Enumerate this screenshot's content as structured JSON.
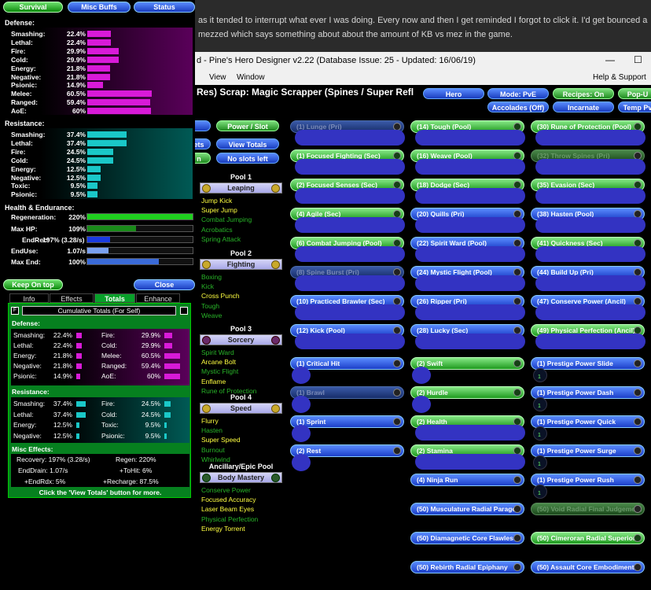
{
  "forum": {
    "line1": "as it tended to interrupt what ever I was doing.  Every now and then I get reminded I forgot to click it.  I'd get bounced a",
    "line2": "mezzed which says something about about the amount of KB vs mez in the game."
  },
  "window": {
    "title": "d - Pine's Hero Designer v2.22 (Database Issue: 25 - Updated: 16/06/19)",
    "min": "—",
    "max": "☐"
  },
  "menu": {
    "view": "View",
    "window": "Window",
    "help": "Help & Support"
  },
  "build_title": "Res) Scrap: Magic Scrapper (Spines / Super Refl",
  "top_buttons": {
    "hero": "Hero",
    "mode": "Mode: PvE",
    "recipes": "Recipes: On",
    "popup": "Pop-U",
    "accolades": "Accolades (Off)",
    "incarnate": "Incarnate",
    "temp": "Temp Pv"
  },
  "mid_buttons": {
    "power_slot": "Power / Slot",
    "view_totals": "View Totals",
    "no_slots": "No slots left",
    "ets": "ets",
    "on": "n"
  },
  "pools": [
    {
      "header": "Pool 1",
      "name": "Leaping",
      "items": [
        {
          "t": "Jump Kick",
          "c": "y"
        },
        {
          "t": "Super Jump",
          "c": "y"
        },
        {
          "t": "Combat Jumping",
          "c": "g"
        },
        {
          "t": "Acrobatics",
          "c": "g"
        },
        {
          "t": "Spring Attack",
          "c": "g"
        }
      ]
    },
    {
      "header": "Pool 2",
      "name": "Fighting",
      "items": [
        {
          "t": "Boxing",
          "c": "g"
        },
        {
          "t": "Kick",
          "c": "g"
        },
        {
          "t": "Cross Punch",
          "c": "y"
        },
        {
          "t": "Tough",
          "c": "g"
        },
        {
          "t": "Weave",
          "c": "g"
        }
      ]
    },
    {
      "header": "Pool 3",
      "name": "Sorcery",
      "items": [
        {
          "t": "Spirit Ward",
          "c": "g"
        },
        {
          "t": "Arcane Bolt",
          "c": "y"
        },
        {
          "t": "Mystic Flight",
          "c": "g"
        },
        {
          "t": "Enflame",
          "c": "y"
        },
        {
          "t": "Rune of Protection",
          "c": "g"
        }
      ]
    },
    {
      "header": "Pool 4",
      "name": "Speed",
      "items": [
        {
          "t": "Flurry",
          "c": "y"
        },
        {
          "t": "Hasten",
          "c": "g"
        },
        {
          "t": "Super Speed",
          "c": "y"
        },
        {
          "t": "Burnout",
          "c": "g"
        },
        {
          "t": "Whirlwind",
          "c": "g"
        }
      ]
    },
    {
      "header": "Ancillary/Epic Pool",
      "name": "Body Mastery",
      "items": [
        {
          "t": "Conserve Power",
          "c": "g"
        },
        {
          "t": "Focused Accuracy",
          "c": "y"
        },
        {
          "t": "Laser Beam Eyes",
          "c": "y"
        },
        {
          "t": "Physical Perfection",
          "c": "g"
        },
        {
          "t": "Energy Torrent",
          "c": "y"
        }
      ]
    }
  ],
  "col1": [
    {
      "t": "(1) Lunge (Pri)",
      "s": "db"
    },
    {
      "t": "(1) Focused Fighting (Sec)",
      "s": "g"
    },
    {
      "t": "(2) Focused Senses (Sec)",
      "s": "g"
    },
    {
      "t": "(4) Agile (Sec)",
      "s": "g"
    },
    {
      "t": "(6) Combat Jumping (Pool)",
      "s": "g"
    },
    {
      "t": "(8) Spine Burst (Pri)",
      "s": "db"
    },
    {
      "t": "(10) Practiced Brawler (Sec)",
      "s": "b"
    },
    {
      "t": "(12) Kick (Pool)",
      "s": "b"
    },
    {
      "t": "(1) Critical Hit",
      "s": "b"
    },
    {
      "t": "(1) Brawl",
      "s": "db"
    },
    {
      "t": "(1) Sprint",
      "s": "b"
    },
    {
      "t": "(2) Rest",
      "s": "b"
    }
  ],
  "col2": [
    {
      "t": "(14) Tough (Pool)",
      "s": "g"
    },
    {
      "t": "(16) Weave (Pool)",
      "s": "g"
    },
    {
      "t": "(18) Dodge (Sec)",
      "s": "g"
    },
    {
      "t": "(20) Quills (Pri)",
      "s": "b"
    },
    {
      "t": "(22) Spirit Ward (Pool)",
      "s": "b"
    },
    {
      "t": "(24) Mystic Flight (Pool)",
      "s": "b"
    },
    {
      "t": "(26) Ripper (Pri)",
      "s": "b"
    },
    {
      "t": "(28) Lucky (Sec)",
      "s": "b"
    },
    {
      "t": "(2) Swift",
      "s": "g"
    },
    {
      "t": "(2) Hurdle",
      "s": "g"
    },
    {
      "t": "(2) Health",
      "s": "g"
    },
    {
      "t": "(2) Stamina",
      "s": "g"
    },
    {
      "t": "(4) Ninja Run",
      "s": "b"
    },
    {
      "t": "(50) Musculature Radial Paragon",
      "s": "b"
    },
    {
      "t": "(50) Diamagnetic Core Flawless",
      "s": "b"
    },
    {
      "t": "(50) Rebirth Radial Epiphany",
      "s": "b"
    }
  ],
  "col3": [
    {
      "t": "(30) Rune of Protection (Pool)",
      "s": "g"
    },
    {
      "t": "(32) Throw Spines (Pri)",
      "s": "dg"
    },
    {
      "t": "(35) Evasion (Sec)",
      "s": "g"
    },
    {
      "t": "(38) Hasten (Pool)",
      "s": "b"
    },
    {
      "t": "(41) Quickness (Sec)",
      "s": "g"
    },
    {
      "t": "(44) Build Up (Pri)",
      "s": "b"
    },
    {
      "t": "(47) Conserve Power (Ancil)",
      "s": "b"
    },
    {
      "t": "(49) Physical Perfection (Ancil)",
      "s": "g"
    },
    {
      "t": "(1) Prestige Power Slide",
      "s": "b"
    },
    {
      "t": "(1) Prestige Power Dash",
      "s": "b"
    },
    {
      "t": "(1) Prestige Power Quick",
      "s": "b"
    },
    {
      "t": "(1) Prestige Power Surge",
      "s": "b"
    },
    {
      "t": "(1) Prestige Power Rush",
      "s": "b"
    },
    {
      "t": "(50) Void Radial Final Judgement",
      "s": "dg"
    },
    {
      "t": "(50) Cimeroran Radial Superior",
      "s": "g"
    },
    {
      "t": "(50) Assault Core Embodiment",
      "s": "b"
    }
  ],
  "enh_slot_label": "1",
  "left": {
    "tabs": {
      "survival": "Survival",
      "misc": "Misc Buffs",
      "status": "Status"
    },
    "defense_title": "Defense:",
    "defense": [
      {
        "l": "Smashing:",
        "v": "22.4%",
        "p": 22.4
      },
      {
        "l": "Lethal:",
        "v": "22.4%",
        "p": 22.4
      },
      {
        "l": "Fire:",
        "v": "29.9%",
        "p": 29.9
      },
      {
        "l": "Cold:",
        "v": "29.9%",
        "p": 29.9
      },
      {
        "l": "Energy:",
        "v": "21.8%",
        "p": 21.8
      },
      {
        "l": "Negative:",
        "v": "21.8%",
        "p": 21.8
      },
      {
        "l": "Psionic:",
        "v": "14.9%",
        "p": 14.9
      },
      {
        "l": "Melee:",
        "v": "60.5%",
        "p": 60.5
      },
      {
        "l": "Ranged:",
        "v": "59.4%",
        "p": 59.4
      },
      {
        "l": "AoE:",
        "v": "60%",
        "p": 60
      }
    ],
    "resistance_title": "Resistance:",
    "resistance": [
      {
        "l": "Smashing:",
        "v": "37.4%",
        "p": 37.4
      },
      {
        "l": "Lethal:",
        "v": "37.4%",
        "p": 37.4
      },
      {
        "l": "Fire:",
        "v": "24.5%",
        "p": 24.5
      },
      {
        "l": "Cold:",
        "v": "24.5%",
        "p": 24.5
      },
      {
        "l": "Energy:",
        "v": "12.5%",
        "p": 12.5
      },
      {
        "l": "Negative:",
        "v": "12.5%",
        "p": 12.5
      },
      {
        "l": "Toxic:",
        "v": "9.5%",
        "p": 9.5
      },
      {
        "l": "Psionic:",
        "v": "9.5%",
        "p": 9.5
      }
    ],
    "he_title": "Health & Endurance:",
    "he": [
      {
        "l": "Regeneration:",
        "v": "220%",
        "p": 100,
        "c": "#1fd01f"
      },
      {
        "l": "Max HP:",
        "v": "109%",
        "p": 46,
        "c": "#1a8a1a"
      },
      {
        "l": "EndRec:",
        "v": "197% (3.28/s)",
        "p": 22,
        "c": "#1a3adf"
      },
      {
        "l": "EndUse:",
        "v": "1.07/s",
        "p": 20,
        "c": "#7aa0f0"
      },
      {
        "l": "Max End:",
        "v": "100%",
        "p": 68,
        "c": "#3a6ad8"
      }
    ],
    "keep_on_top": "Keep On top",
    "close": "Close"
  },
  "totals": {
    "tabs": [
      "Info",
      "Effects",
      "Totals",
      "Enhance"
    ],
    "f": "F",
    "header": "Cumulative Totals (For Self)",
    "def_title": "Defense:",
    "def_left": [
      {
        "l": "Smashing:",
        "v": "22.4%",
        "p": 22.4
      },
      {
        "l": "Lethal:",
        "v": "22.4%",
        "p": 22.4
      },
      {
        "l": "Energy:",
        "v": "21.8%",
        "p": 21.8
      },
      {
        "l": "Negative:",
        "v": "21.8%",
        "p": 21.8
      },
      {
        "l": "Psionic:",
        "v": "14.9%",
        "p": 14.9
      }
    ],
    "def_right": [
      {
        "l": "Fire:",
        "v": "29.9%",
        "p": 29.9
      },
      {
        "l": "Cold:",
        "v": "29.9%",
        "p": 29.9
      },
      {
        "l": "Melee:",
        "v": "60.5%",
        "p": 60.5
      },
      {
        "l": "Ranged:",
        "v": "59.4%",
        "p": 59.4
      },
      {
        "l": "AoE:",
        "v": "60%",
        "p": 60
      }
    ],
    "res_title": "Resistance:",
    "res_left": [
      {
        "l": "Smashing:",
        "v": "37.4%",
        "p": 37.4
      },
      {
        "l": "Lethal:",
        "v": "37.4%",
        "p": 37.4
      },
      {
        "l": "Energy:",
        "v": "12.5%",
        "p": 12.5
      },
      {
        "l": "Negative:",
        "v": "12.5%",
        "p": 12.5
      }
    ],
    "res_right": [
      {
        "l": "Fire:",
        "v": "24.5%",
        "p": 24.5
      },
      {
        "l": "Cold:",
        "v": "24.5%",
        "p": 24.5
      },
      {
        "l": "Toxic:",
        "v": "9.5%",
        "p": 9.5
      },
      {
        "l": "Psionic:",
        "v": "9.5%",
        "p": 9.5
      }
    ],
    "misc_title": "Misc Effects:",
    "misc": [
      "Recovery: 197% (3.28/s)",
      "Regen: 220%",
      "EndDrain: 1.07/s",
      "+ToHit: 6%",
      "+EndRdx: 5%",
      "+Recharge: 87.5%"
    ],
    "footer": "Click the 'View Totals' button for more."
  }
}
